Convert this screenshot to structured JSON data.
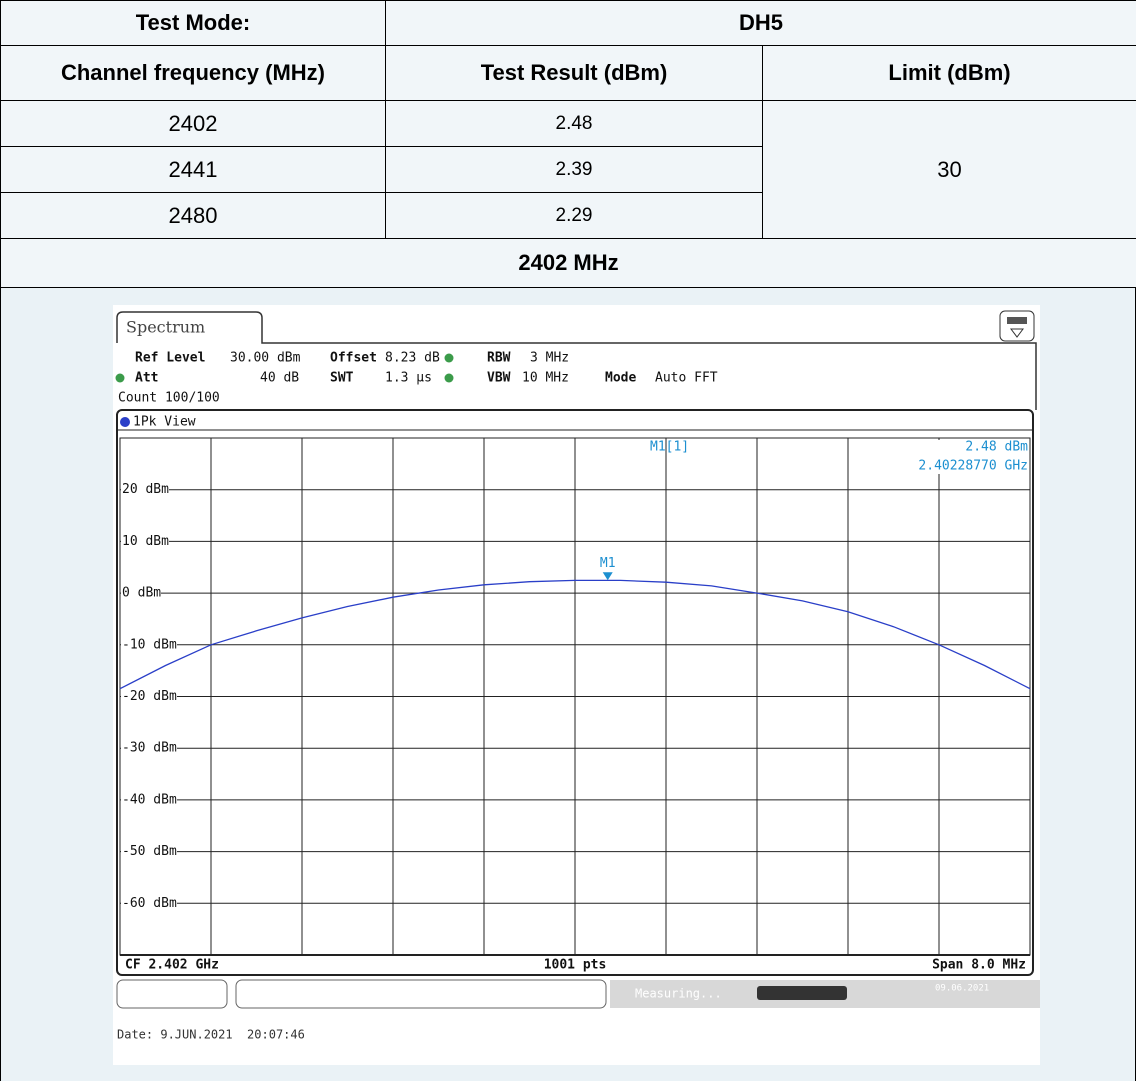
{
  "table": {
    "rows": [
      [
        "Test Mode:",
        "DH5"
      ],
      [
        "Channel frequency (MHz)",
        "Test Result (dBm)",
        "Limit (dBm)"
      ],
      [
        "2402",
        "2.48",
        "30"
      ],
      [
        "2441",
        "2.39"
      ],
      [
        "2480",
        "2.29"
      ]
    ],
    "section_title": "2402 MHz"
  },
  "chart_data": {
    "type": "line",
    "tab": "Spectrum",
    "settings": {
      "ref_level": [
        "Ref Level",
        "30.00 dBm"
      ],
      "offset": [
        "Offset",
        "8.23 dB"
      ],
      "rbw": [
        "RBW",
        "3 MHz"
      ],
      "att": [
        "Att",
        "40 dB"
      ],
      "swt": [
        "SWT",
        "1.3 µs"
      ],
      "vbw": [
        "VBW",
        "10 MHz"
      ],
      "mode": [
        "Mode",
        "Auto FFT"
      ]
    },
    "count": "Count 100/100",
    "view": "1Pk View",
    "x": [
      2.398,
      2.3984,
      2.3988,
      2.3992,
      2.3996,
      2.4,
      2.4004,
      2.4008,
      2.4012,
      2.4016,
      2.402,
      2.4024,
      2.4028,
      2.4032,
      2.4036,
      2.404,
      2.4044,
      2.4048,
      2.4052,
      2.4056,
      2.406
    ],
    "series": [
      {
        "name": "1Pk",
        "color": "#2a3fc8",
        "values": [
          -18.5,
          -14,
          -10,
          -7.3,
          -4.8,
          -2.6,
          -0.8,
          0.6,
          1.6,
          2.2,
          2.45,
          2.45,
          2.1,
          1.4,
          0,
          -1.5,
          -3.6,
          -6.5,
          -10,
          -14,
          -18.5
        ]
      }
    ],
    "xlim": [
      2.398,
      2.406
    ],
    "ylim": [
      -70,
      30
    ],
    "yticks": [
      {
        "value": 20,
        "label": "20 dBm"
      },
      {
        "value": 10,
        "label": "10 dBm"
      },
      {
        "value": 0,
        "label": "0 dBm"
      },
      {
        "value": -10,
        "label": "-10 dBm"
      },
      {
        "value": -20,
        "label": "-20 dBm"
      },
      {
        "value": -30,
        "label": "-30 dBm"
      },
      {
        "value": -40,
        "label": "-40 dBm"
      },
      {
        "value": -50,
        "label": "-50 dBm"
      },
      {
        "value": -60,
        "label": "-60 dBm"
      }
    ],
    "grid": true,
    "marker": {
      "label": "M1",
      "readout": "M1[1]",
      "x": 2.4022877,
      "y": 2.48,
      "value_label": "2.48 dBm",
      "x_label": "2.40228770 GHz"
    },
    "footer": [
      "CF 2.402 GHz",
      "1001 pts",
      "Span 8.0 MHz"
    ],
    "status": "Measuring...",
    "status_date": "09.06.2021",
    "date": "Date: 9.JUN.2021  20:07:46"
  }
}
